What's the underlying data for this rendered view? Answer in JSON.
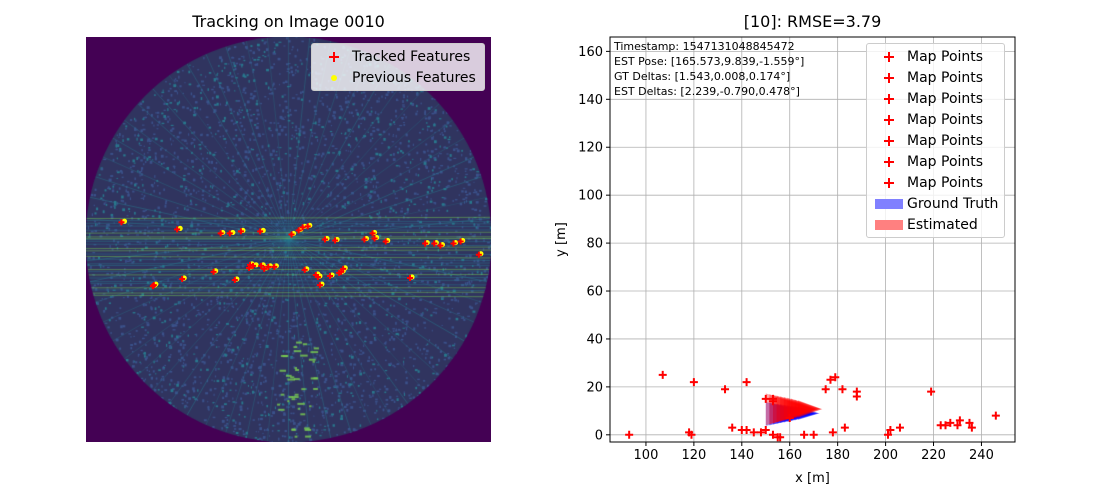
{
  "left_panel": {
    "title": "Tracking on Image 0010",
    "legend": [
      {
        "label": "Tracked Features",
        "marker": "plus",
        "color": "#ff0000"
      },
      {
        "label": "Previous Features",
        "marker": "dot",
        "color": "#ffff00"
      }
    ],
    "colors": {
      "background": "#440154",
      "radar_dark": "#30345f",
      "radar_mid": "#29788e",
      "radar_bright": "#7ad151"
    }
  },
  "right_panel": {
    "title": "[10]: RMSE=3.79",
    "info": [
      "Timestamp: 1547131048845472",
      "EST Pose: [165.573,9.839,-1.559°]",
      "GT Deltas: [1.543,0.008,0.174°]",
      "EST Deltas: [2.239,-0.790,0.478°]"
    ],
    "legend": [
      {
        "label": "Map Points",
        "marker": "plus",
        "color": "#ff0000"
      },
      {
        "label": "Map Points",
        "marker": "plus",
        "color": "#ff0000"
      },
      {
        "label": "Map Points",
        "marker": "plus",
        "color": "#ff0000"
      },
      {
        "label": "Map Points",
        "marker": "plus",
        "color": "#ff0000"
      },
      {
        "label": "Map Points",
        "marker": "plus",
        "color": "#ff0000"
      },
      {
        "label": "Map Points",
        "marker": "plus",
        "color": "#ff0000"
      },
      {
        "label": "Map Points",
        "marker": "plus",
        "color": "#ff0000"
      },
      {
        "label": "Ground Truth",
        "marker": "patch",
        "color": "#8080ff"
      },
      {
        "label": "Estimated",
        "marker": "patch",
        "color": "#ff8080"
      }
    ]
  },
  "chart_data": [
    {
      "type": "scatter",
      "title": "Tracking on Image 0010",
      "xlim": [
        0,
        400
      ],
      "ylim": [
        0,
        400
      ],
      "axes_visible": false,
      "legend_position": "top-right",
      "series": [
        {
          "name": "Previous Features",
          "color": "#ffff00",
          "x": [
            38,
            93,
            135,
            145,
            155,
            175,
            168,
            178,
            182,
            188,
            205,
            212,
            216,
            221,
            218,
            231,
            238,
            248,
            252,
            277,
            287,
            285,
            298,
            337,
            346,
            352,
            365,
            372,
            390,
            68,
            97,
            128,
            149,
            163,
            175,
            229,
            243,
            254,
            256,
            233,
            322,
            69,
            164
          ],
          "y": [
            182,
            189,
            193,
            193,
            191,
            191,
            225,
            228,
            226,
            226,
            194,
            190,
            187,
            186,
            229,
            236,
            199,
            200,
            232,
            199,
            198,
            193,
            201,
            203,
            203,
            205,
            203,
            201,
            214,
            245,
            238,
            231,
            239,
            227,
            225,
            234,
            235,
            231,
            228,
            244,
            237,
            244,
            224
          ]
        },
        {
          "name": "Tracked Features",
          "color": "#ff0000",
          "x": [
            35,
            90,
            133,
            142,
            153,
            172,
            165,
            176,
            180,
            186,
            203,
            210,
            214,
            219,
            216,
            229,
            236,
            246,
            250,
            275,
            285,
            283,
            296,
            335,
            344,
            350,
            363,
            370,
            388,
            66,
            95,
            126,
            147,
            161,
            173,
            227,
            241,
            252,
            254,
            231,
            320,
            67,
            162
          ],
          "y": [
            183,
            190,
            194,
            194,
            192,
            192,
            226,
            229,
            227,
            227,
            195,
            191,
            188,
            187,
            230,
            237,
            200,
            201,
            233,
            200,
            199,
            194,
            202,
            204,
            204,
            206,
            204,
            202,
            215,
            246,
            239,
            232,
            240,
            228,
            226,
            235,
            236,
            232,
            229,
            245,
            238,
            245,
            225
          ]
        }
      ]
    },
    {
      "type": "scatter",
      "title": "[10]: RMSE=3.79",
      "xlabel": "x [m]",
      "ylabel": "y [m]",
      "xlim": [
        85,
        254
      ],
      "ylim": [
        -3,
        166
      ],
      "xticks": [
        100,
        120,
        140,
        160,
        180,
        200,
        220,
        240
      ],
      "yticks": [
        0,
        20,
        40,
        60,
        80,
        100,
        120,
        140,
        160
      ],
      "grid": true,
      "legend_position": "top-right",
      "series": [
        {
          "name": "Map Points",
          "color": "#ff0000",
          "x": [
            93,
            107,
            118,
            119,
            120,
            133,
            136,
            140,
            142,
            142,
            145,
            148,
            150,
            150,
            153,
            153,
            153,
            155,
            156,
            160,
            166,
            170,
            175,
            177,
            178,
            179,
            182,
            183,
            188,
            188,
            201,
            202,
            206,
            219,
            223,
            225,
            227,
            230,
            231,
            235,
            236,
            246
          ],
          "y": [
            0,
            25,
            1,
            0,
            22,
            19,
            3,
            2,
            2,
            22,
            1,
            1,
            15,
            2,
            15,
            14,
            0,
            -1,
            -1,
            7,
            0,
            0,
            19,
            23,
            1,
            24,
            19,
            3,
            16,
            18,
            0,
            2,
            3,
            18,
            4,
            4,
            5,
            4,
            6,
            5,
            3,
            8
          ]
        },
        {
          "name": "Ground Truth",
          "color": "#0000ff",
          "pose": {
            "x": 164.0,
            "y": 9.8,
            "heading_deg": -1.4
          },
          "history": [
            [
              150,
              9.5
            ],
            [
              151.5,
              9.5
            ],
            [
              153,
              9.6
            ],
            [
              154.5,
              9.6
            ],
            [
              156,
              9.7
            ],
            [
              157.5,
              9.7
            ],
            [
              159,
              9.7
            ],
            [
              160.5,
              9.8
            ],
            [
              162,
              9.8
            ],
            [
              163.5,
              9.8
            ]
          ]
        },
        {
          "name": "Estimated",
          "color": "#ff0000",
          "pose": {
            "x": 165.573,
            "y": 9.839,
            "heading_deg": -1.559
          },
          "history": [
            [
              150,
              9.8
            ],
            [
              151.5,
              9.8
            ],
            [
              153,
              9.9
            ],
            [
              154.5,
              9.9
            ],
            [
              156,
              9.9
            ],
            [
              157.5,
              10.0
            ],
            [
              159,
              10.0
            ],
            [
              160.5,
              10.0
            ],
            [
              162,
              9.9
            ],
            [
              163.5,
              9.9
            ]
          ]
        }
      ]
    }
  ]
}
